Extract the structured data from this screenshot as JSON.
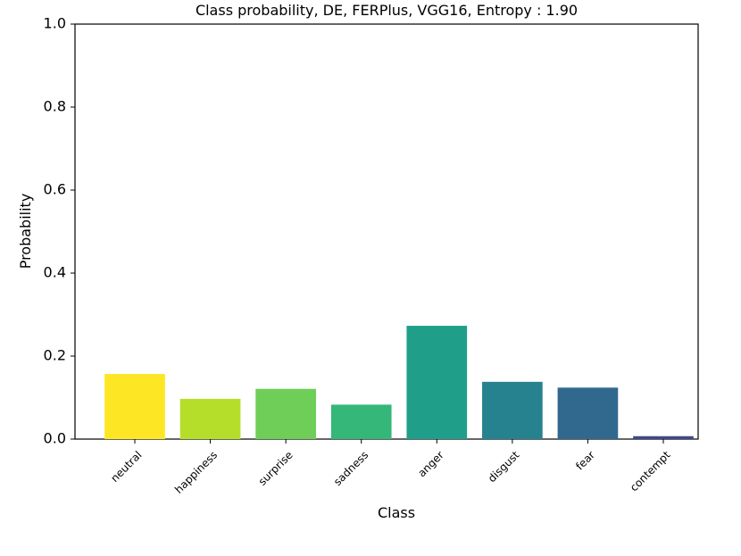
{
  "chart_data": {
    "type": "bar",
    "title": "Class probability, DE, FERPlus, VGG16, Entropy : 1.90",
    "xlabel": "Class",
    "ylabel": "Probability",
    "ylim": [
      0,
      1
    ],
    "yticks": [
      "0.0",
      "0.2",
      "0.4",
      "0.6",
      "0.8",
      "1.0"
    ],
    "categories": [
      "neutral",
      "happiness",
      "surprise",
      "sadness",
      "anger",
      "disgust",
      "fear",
      "contempt"
    ],
    "values": [
      0.157,
      0.097,
      0.121,
      0.083,
      0.273,
      0.138,
      0.124,
      0.007
    ],
    "colors": [
      "#fde725",
      "#b5de2b",
      "#6ece58",
      "#35b779",
      "#1f9e89",
      "#26828e",
      "#31688e",
      "#3e4989"
    ],
    "grid": false,
    "legend": "none"
  }
}
